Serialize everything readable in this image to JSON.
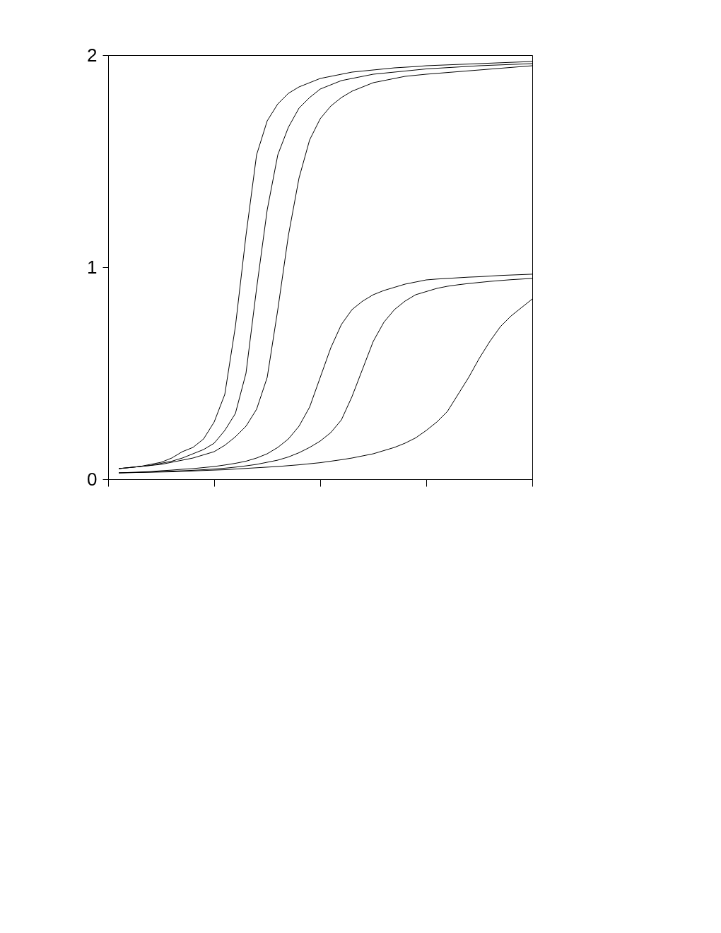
{
  "chart_data": {
    "type": "line",
    "categories": [
      null,
      null,
      null,
      null,
      null,
      null,
      null,
      null,
      null,
      null,
      null,
      null,
      null,
      null,
      null,
      null,
      null,
      null,
      null,
      null,
      null,
      null,
      null,
      null,
      null,
      null,
      null,
      null,
      null,
      null,
      null,
      null,
      null,
      null,
      null,
      null,
      null,
      null,
      null,
      null,
      null
    ],
    "series": [
      {
        "color": "#000000",
        "values": [
          null,
          0.05,
          0.055,
          0.06,
          0.07,
          0.08,
          0.1,
          0.13,
          0.15,
          0.19,
          0.27,
          0.4,
          0.72,
          1.15,
          1.53,
          1.69,
          1.77,
          1.82,
          1.85,
          1.87,
          1.89,
          1.9,
          1.91,
          1.92,
          1.925,
          1.93,
          1.935,
          1.94,
          1.943,
          1.946,
          1.95,
          1.952,
          1.954,
          1.956,
          1.958,
          1.96,
          1.962,
          1.964,
          1.966,
          1.968,
          1.97
        ]
      },
      {
        "color": "#000000",
        "values": [
          null,
          0.05,
          0.055,
          0.06,
          0.065,
          0.075,
          0.085,
          0.1,
          0.12,
          0.14,
          0.17,
          0.23,
          0.31,
          0.5,
          0.9,
          1.27,
          1.53,
          1.66,
          1.75,
          1.8,
          1.84,
          1.86,
          1.88,
          1.89,
          1.9,
          1.91,
          1.915,
          1.92,
          1.925,
          1.93,
          1.935,
          1.938,
          1.941,
          1.944,
          1.947,
          1.95,
          1.952,
          1.954,
          1.956,
          1.958,
          1.96
        ]
      },
      {
        "color": "#000000",
        "values": [
          null,
          0.05,
          0.055,
          0.06,
          0.065,
          0.07,
          0.08,
          0.09,
          0.1,
          0.115,
          0.13,
          0.16,
          0.2,
          0.25,
          0.33,
          0.48,
          0.8,
          1.15,
          1.42,
          1.6,
          1.7,
          1.76,
          1.8,
          1.83,
          1.85,
          1.87,
          1.88,
          1.89,
          1.9,
          1.905,
          1.91,
          1.914,
          1.918,
          1.922,
          1.926,
          1.93,
          1.934,
          1.938,
          1.942,
          1.946,
          1.95
        ]
      },
      {
        "color": "#000000",
        "values": [
          null,
          0.03,
          0.032,
          0.034,
          0.036,
          0.04,
          0.043,
          0.047,
          0.05,
          0.055,
          0.06,
          0.067,
          0.075,
          0.085,
          0.1,
          0.12,
          0.15,
          0.19,
          0.25,
          0.34,
          0.48,
          0.62,
          0.73,
          0.8,
          0.84,
          0.87,
          0.89,
          0.905,
          0.92,
          0.93,
          0.94,
          0.944,
          0.947,
          0.95,
          0.953,
          0.955,
          0.958,
          0.961,
          0.963,
          0.965,
          0.967
        ]
      },
      {
        "color": "#000000",
        "values": [
          null,
          0.03,
          0.031,
          0.032,
          0.034,
          0.036,
          0.038,
          0.04,
          0.042,
          0.045,
          0.048,
          0.052,
          0.057,
          0.063,
          0.07,
          0.08,
          0.09,
          0.105,
          0.125,
          0.15,
          0.18,
          0.22,
          0.28,
          0.39,
          0.52,
          0.65,
          0.74,
          0.8,
          0.84,
          0.87,
          0.885,
          0.9,
          0.91,
          0.917,
          0.923,
          0.928,
          0.933,
          0.937,
          0.941,
          0.944,
          0.947
        ]
      },
      {
        "color": "#000000",
        "values": [
          null,
          0.03,
          0.031,
          0.032,
          0.033,
          0.034,
          0.035,
          0.037,
          0.039,
          0.041,
          0.043,
          0.045,
          0.048,
          0.051,
          0.054,
          0.057,
          0.06,
          0.064,
          0.068,
          0.073,
          0.078,
          0.085,
          0.092,
          0.1,
          0.11,
          0.12,
          0.135,
          0.15,
          0.17,
          0.195,
          0.23,
          0.27,
          0.32,
          0.4,
          0.48,
          0.57,
          0.65,
          0.72,
          0.77,
          0.81,
          0.85
        ]
      }
    ],
    "ylim": [
      0,
      2
    ],
    "yticks": [
      0,
      1,
      2
    ],
    "tick_labels": "y",
    "grid": false
  }
}
